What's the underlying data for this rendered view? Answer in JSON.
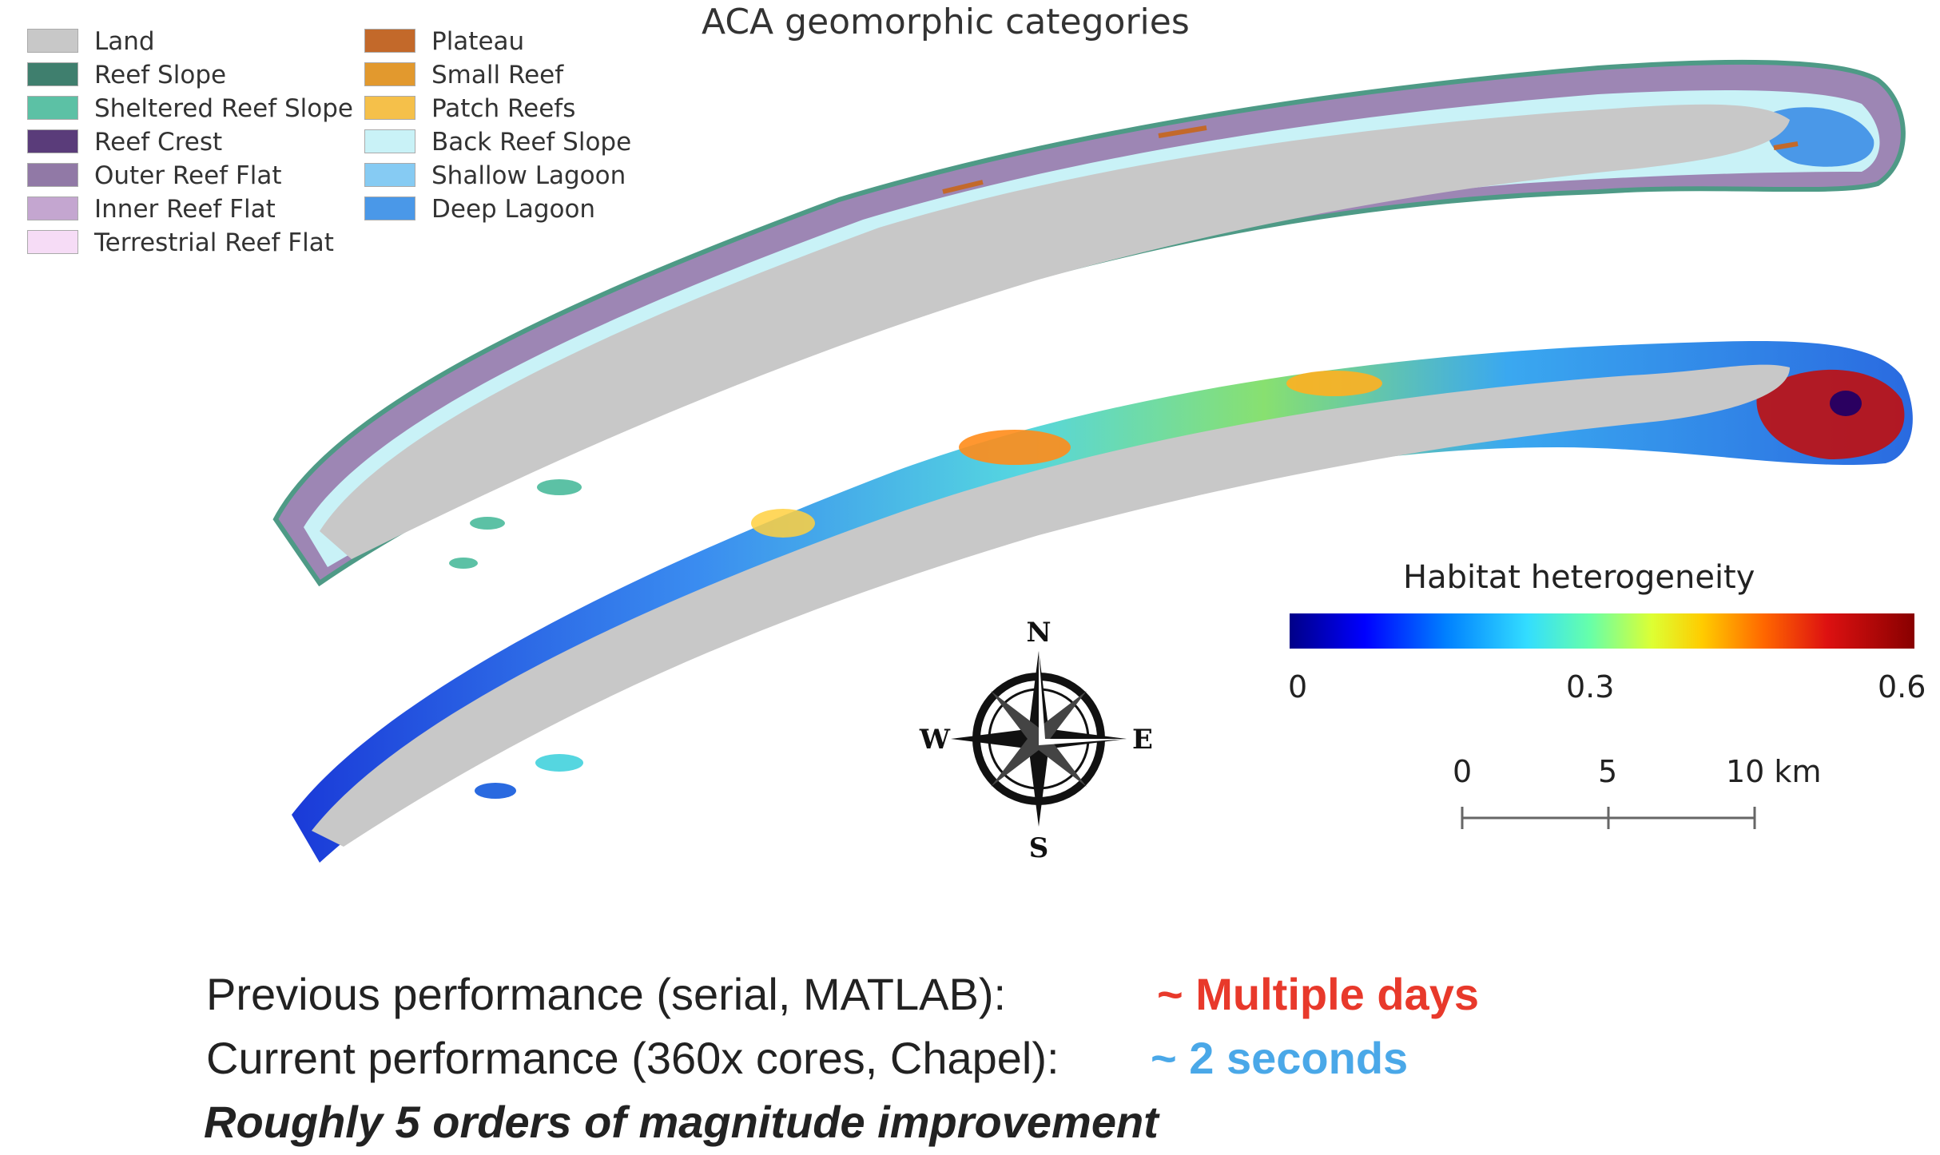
{
  "title": "ACA geomorphic categories",
  "legend": {
    "left": [
      {
        "label": "Land",
        "color": "#c8c8c8"
      },
      {
        "label": "Reef Slope",
        "color": "#3f7f6e"
      },
      {
        "label": "Sheltered Reef Slope",
        "color": "#5cc1a5"
      },
      {
        "label": "Reef Crest",
        "color": "#5a3c7a"
      },
      {
        "label": "Outer Reef Flat",
        "color": "#9179a6"
      },
      {
        "label": "Inner Reef Flat",
        "color": "#c4a6d0"
      },
      {
        "label": "Terrestrial Reef Flat",
        "color": "#f6dcf6"
      }
    ],
    "right": [
      {
        "label": "Plateau",
        "color": "#c3692a"
      },
      {
        "label": "Small Reef",
        "color": "#e2992e"
      },
      {
        "label": "Patch Reefs",
        "color": "#f5c04a"
      },
      {
        "label": "Back Reef Slope",
        "color": "#c9f2f7"
      },
      {
        "label": "Shallow Lagoon",
        "color": "#86cbf3"
      },
      {
        "label": "Deep Lagoon",
        "color": "#4a98e8"
      }
    ]
  },
  "heterogeneity": {
    "title": "Habitat heterogeneity",
    "ticks": [
      "0",
      "0.3",
      "0.6"
    ]
  },
  "compass": {
    "n": "N",
    "s": "S",
    "e": "E",
    "w": "W"
  },
  "scalebar": {
    "ticks": [
      "0",
      "5",
      "10 km"
    ]
  },
  "performance": {
    "prev_label": "Previous performance (serial, MATLAB):",
    "prev_value": "~ Multiple days",
    "curr_label": "Current performance (360x cores, Chapel):",
    "curr_value": "~ 2 seconds",
    "summary": "Roughly 5 orders of magnitude improvement"
  }
}
